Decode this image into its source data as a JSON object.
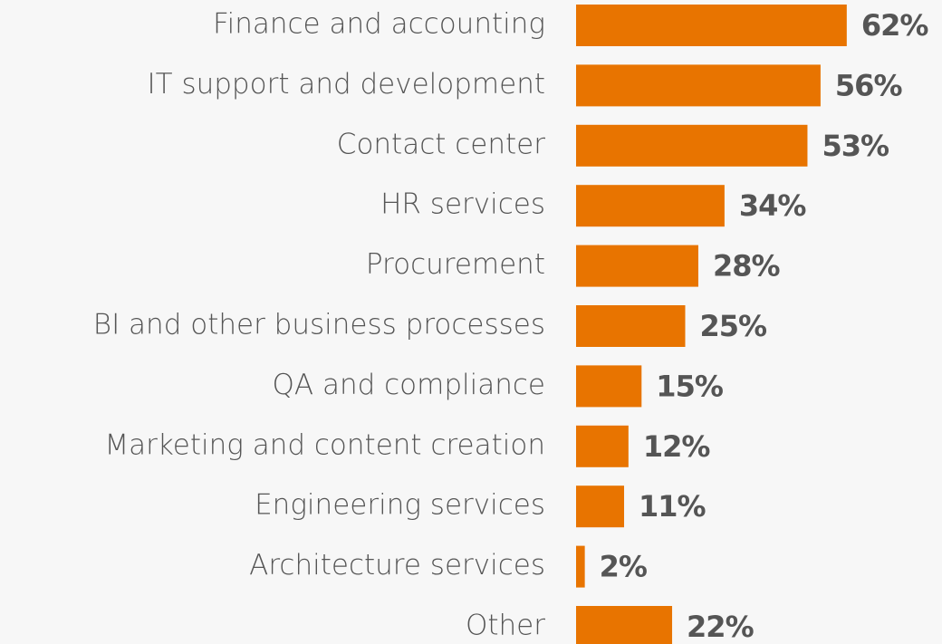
{
  "chart_data": {
    "type": "bar",
    "orientation": "horizontal",
    "categories": [
      "Finance and accounting",
      "IT support and development",
      "Contact center",
      "HR services",
      "Procurement",
      "BI and other business processes",
      "QA and compliance",
      "Marketing and content creation",
      "Engineering services",
      "Architecture services",
      "Other"
    ],
    "values": [
      62,
      56,
      53,
      34,
      28,
      25,
      15,
      12,
      11,
      2,
      22
    ],
    "value_labels": [
      "62%",
      "56%",
      "53%",
      "34%",
      "28%",
      "25%",
      "15%",
      "12%",
      "11%",
      "2%",
      "22%"
    ],
    "color": "#e87400"
  }
}
